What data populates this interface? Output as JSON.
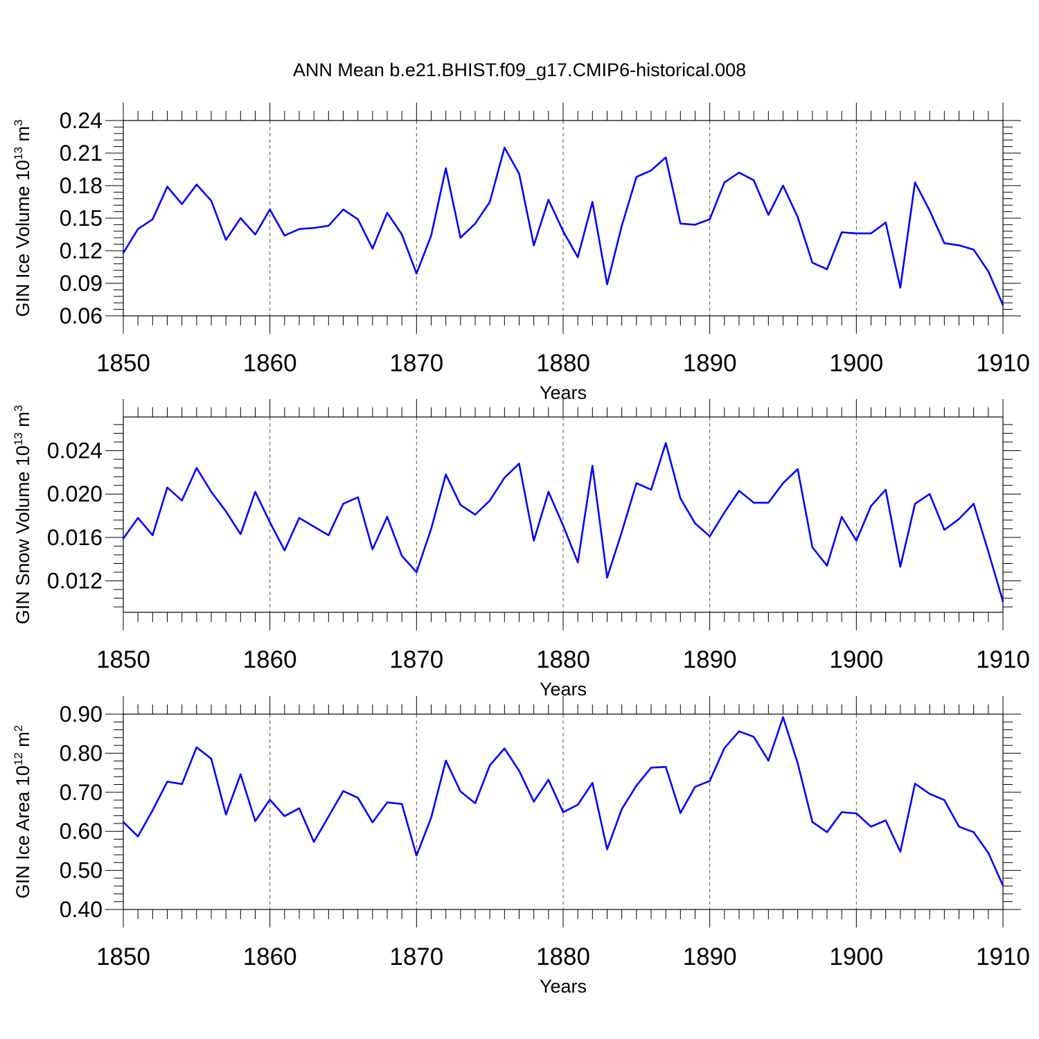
{
  "title": "ANN Mean b.e21.BHIST.f09_g17.CMIP6-historical.008",
  "colors": {
    "line": "#0000ff",
    "axis": "#000000",
    "grid": "#555555"
  },
  "chart_data": [
    {
      "type": "line",
      "xlabel": "Years",
      "ylabel": {
        "prefix": "GIN Ice Volume 10",
        "exp": "13",
        "unit": " m",
        "unit_exp": "3"
      },
      "xlim": [
        1850,
        1910
      ],
      "ylim": [
        0.06,
        0.24
      ],
      "xticks": [
        "1850",
        "1860",
        "1870",
        "1880",
        "1890",
        "1900",
        "1910"
      ],
      "yticks": [
        "0.06",
        "0.09",
        "0.12",
        "0.15",
        "0.18",
        "0.21",
        "0.24"
      ],
      "grid": "vertical dashed at major x ticks",
      "series": [
        {
          "x": [
            1850,
            1851,
            1852,
            1853,
            1854,
            1855,
            1856,
            1857,
            1858,
            1859,
            1860,
            1861,
            1862,
            1863,
            1864,
            1865,
            1866,
            1867,
            1868,
            1869,
            1870,
            1871,
            1872,
            1873,
            1874,
            1875,
            1876,
            1877,
            1878,
            1879,
            1880,
            1881,
            1882,
            1883,
            1884,
            1885,
            1886,
            1887,
            1888,
            1889,
            1890,
            1891,
            1892,
            1893,
            1894,
            1895,
            1896,
            1897,
            1898,
            1899,
            1900,
            1901,
            1902,
            1903,
            1904,
            1905,
            1906,
            1907,
            1908,
            1909,
            1910
          ],
          "values": [
            0.118,
            0.14,
            0.149,
            0.179,
            0.163,
            0.181,
            0.166,
            0.13,
            0.15,
            0.135,
            0.158,
            0.134,
            0.14,
            0.141,
            0.143,
            0.158,
            0.149,
            0.122,
            0.155,
            0.135,
            0.099,
            0.134,
            0.196,
            0.132,
            0.145,
            0.165,
            0.215,
            0.191,
            0.125,
            0.167,
            0.138,
            0.114,
            0.165,
            0.089,
            0.143,
            0.188,
            0.194,
            0.206,
            0.145,
            0.144,
            0.149,
            0.183,
            0.192,
            0.185,
            0.153,
            0.18,
            0.151,
            0.109,
            0.103,
            0.137,
            0.136,
            0.136,
            0.146,
            0.086,
            0.183,
            0.157,
            0.127,
            0.125,
            0.121,
            0.101,
            0.07
          ]
        }
      ]
    },
    {
      "type": "line",
      "xlabel": "Years",
      "ylabel": {
        "prefix": "GIN Snow Volume 10",
        "exp": "13",
        "unit": " m",
        "unit_exp": "3"
      },
      "xlim": [
        1850,
        1910
      ],
      "ylim": [
        0.0091,
        0.0271
      ],
      "xticks": [
        "1850",
        "1860",
        "1870",
        "1880",
        "1890",
        "1900",
        "1910"
      ],
      "yticks": [
        "0.012",
        "0.016",
        "0.020",
        "0.024"
      ],
      "grid": "vertical dashed at major x ticks",
      "series": [
        {
          "x": [
            1850,
            1851,
            1852,
            1853,
            1854,
            1855,
            1856,
            1857,
            1858,
            1859,
            1860,
            1861,
            1862,
            1863,
            1864,
            1865,
            1866,
            1867,
            1868,
            1869,
            1870,
            1871,
            1872,
            1873,
            1874,
            1875,
            1876,
            1877,
            1878,
            1879,
            1880,
            1881,
            1882,
            1883,
            1884,
            1885,
            1886,
            1887,
            1888,
            1889,
            1890,
            1891,
            1892,
            1893,
            1894,
            1895,
            1896,
            1897,
            1898,
            1899,
            1900,
            1901,
            1902,
            1903,
            1904,
            1905,
            1906,
            1907,
            1908,
            1909,
            1910
          ],
          "values": [
            0.0159,
            0.0178,
            0.0162,
            0.0206,
            0.0194,
            0.0224,
            0.0202,
            0.0184,
            0.0163,
            0.0202,
            0.0174,
            0.0148,
            0.0178,
            0.017,
            0.0162,
            0.0191,
            0.0197,
            0.0149,
            0.0179,
            0.0143,
            0.0128,
            0.0168,
            0.0218,
            0.019,
            0.0181,
            0.0194,
            0.0215,
            0.0228,
            0.0157,
            0.0202,
            0.0171,
            0.0137,
            0.0226,
            0.0123,
            0.0165,
            0.021,
            0.0204,
            0.0247,
            0.0196,
            0.0173,
            0.0161,
            0.0183,
            0.0203,
            0.0192,
            0.0192,
            0.021,
            0.0223,
            0.0151,
            0.0134,
            0.0179,
            0.0157,
            0.0189,
            0.0204,
            0.0133,
            0.0191,
            0.02,
            0.0167,
            0.0177,
            0.0191,
            0.0147,
            0.0101
          ]
        }
      ]
    },
    {
      "type": "line",
      "xlabel": "Years",
      "ylabel": {
        "prefix": "GIN Ice Area 10",
        "exp": "12",
        "unit": " m",
        "unit_exp": "2"
      },
      "xlim": [
        1850,
        1910
      ],
      "ylim": [
        0.4,
        0.9
      ],
      "xticks": [
        "1850",
        "1860",
        "1870",
        "1880",
        "1890",
        "1900",
        "1910"
      ],
      "yticks": [
        "0.40",
        "0.50",
        "0.60",
        "0.70",
        "0.80",
        "0.90"
      ],
      "grid": "vertical dashed at major x ticks",
      "series": [
        {
          "x": [
            1850,
            1851,
            1852,
            1853,
            1854,
            1855,
            1856,
            1857,
            1858,
            1859,
            1860,
            1861,
            1862,
            1863,
            1864,
            1865,
            1866,
            1867,
            1868,
            1869,
            1870,
            1871,
            1872,
            1873,
            1874,
            1875,
            1876,
            1877,
            1878,
            1879,
            1880,
            1881,
            1882,
            1883,
            1884,
            1885,
            1886,
            1887,
            1888,
            1889,
            1890,
            1891,
            1892,
            1893,
            1894,
            1895,
            1896,
            1897,
            1898,
            1899,
            1900,
            1901,
            1902,
            1903,
            1904,
            1905,
            1906,
            1907,
            1908,
            1909,
            1910
          ],
          "values": [
            0.624,
            0.587,
            0.654,
            0.727,
            0.721,
            0.815,
            0.786,
            0.643,
            0.746,
            0.626,
            0.681,
            0.639,
            0.659,
            0.573,
            0.638,
            0.703,
            0.686,
            0.623,
            0.674,
            0.67,
            0.538,
            0.635,
            0.781,
            0.702,
            0.672,
            0.769,
            0.812,
            0.755,
            0.676,
            0.732,
            0.649,
            0.668,
            0.724,
            0.554,
            0.657,
            0.717,
            0.763,
            0.765,
            0.647,
            0.714,
            0.729,
            0.813,
            0.856,
            0.842,
            0.781,
            0.892,
            0.774,
            0.624,
            0.598,
            0.649,
            0.646,
            0.612,
            0.628,
            0.548,
            0.722,
            0.696,
            0.68,
            0.612,
            0.598,
            0.545,
            0.461
          ]
        }
      ]
    }
  ]
}
